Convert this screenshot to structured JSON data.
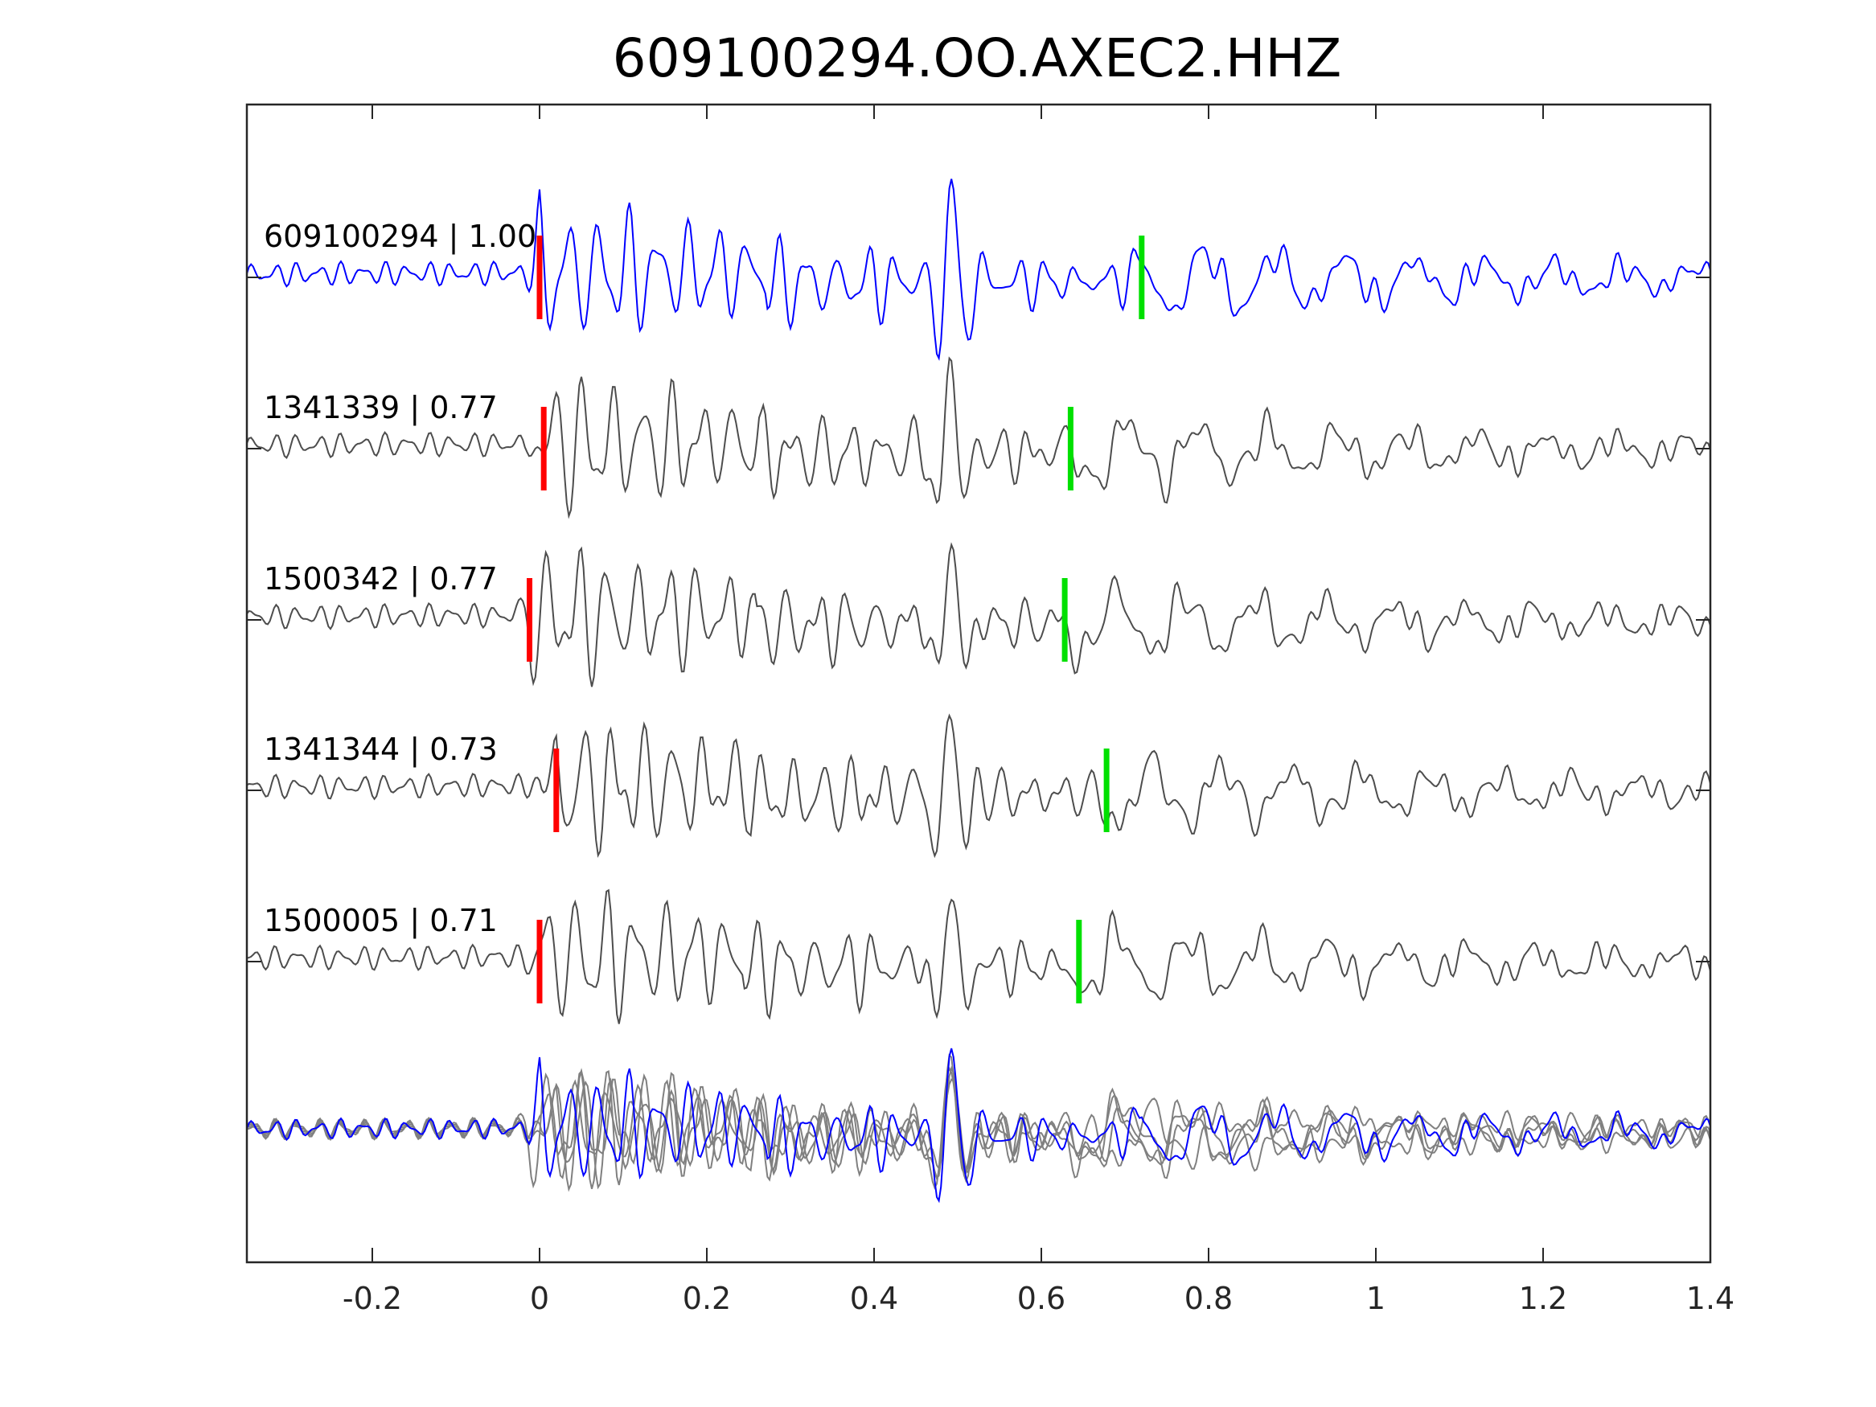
{
  "chart_data": {
    "type": "line",
    "title": "609100294.OO.AXEC2.HHZ",
    "xlabel": "",
    "ylabel": "",
    "xlim": [
      -0.35,
      1.4
    ],
    "x_ticks": [
      -0.2,
      0,
      0.2,
      0.4,
      0.6,
      0.8,
      1,
      1.2,
      1.4
    ],
    "x_tick_labels": [
      "-0.2",
      "0",
      "0.2",
      "0.4",
      "0.6",
      "0.8",
      "1",
      "1.2",
      "1.4"
    ],
    "y_ticks_shown": false,
    "grid": false,
    "legend": "none",
    "colors": {
      "master": "#0000ff",
      "correlated": "#4d4d4d",
      "stack_overlay": "#808080",
      "p_pick": "#ff0000",
      "s_pick": "#00e000"
    },
    "series": [
      {
        "id": "609100294",
        "cc": "1.00",
        "label": "609100294 | 1.00",
        "color": "#0000ff",
        "p_pick": 0.0,
        "s_pick": 0.72
      },
      {
        "id": "1341339",
        "cc": "0.77",
        "label": "1341339 | 0.77",
        "color": "#4d4d4d",
        "p_pick": 0.005,
        "s_pick": 0.635
      },
      {
        "id": "1500342",
        "cc": "0.77",
        "label": "1500342 | 0.77",
        "color": "#4d4d4d",
        "p_pick": -0.012,
        "s_pick": 0.628
      },
      {
        "id": "1341344",
        "cc": "0.73",
        "label": "1341344 | 0.73",
        "color": "#4d4d4d",
        "p_pick": 0.02,
        "s_pick": 0.678
      },
      {
        "id": "1500005",
        "cc": "0.71",
        "label": "1500005 | 0.71",
        "color": "#4d4d4d",
        "p_pick": 0.0,
        "s_pick": 0.645
      }
    ],
    "bottom_panel": "overlay of all aligned traces (gray) with master trace (blue)"
  }
}
